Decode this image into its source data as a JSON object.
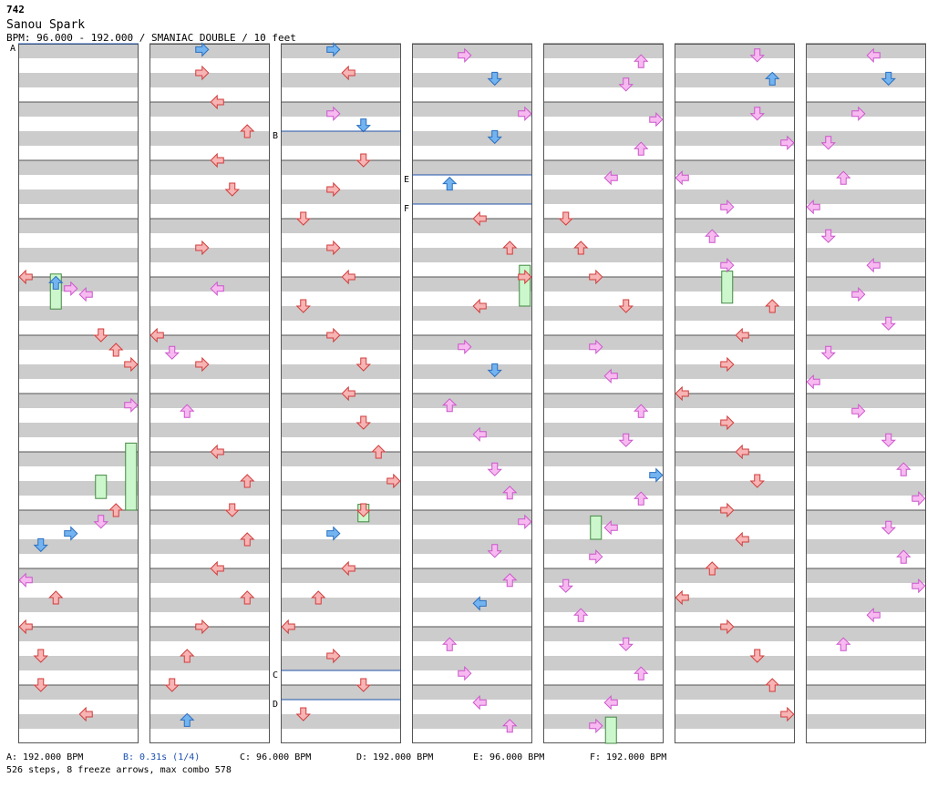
{
  "header": {
    "id": "742",
    "title": "Sanou Spark",
    "info": "BPM: 96.000 - 192.000 / SMANIAC DOUBLE / 10 feet"
  },
  "colors": {
    "stripe": "#cccccc",
    "frame": "#555555",
    "red_fill": "#f7b4b4",
    "red_stroke": "#d23c3c",
    "blue_fill": "#73b4f0",
    "blue_stroke": "#2a6fc0",
    "pink_fill": "#f7baf0",
    "pink_stroke": "#cc55cc",
    "freeze_fill": "#ccf7cc",
    "freeze_stroke": "#448844",
    "marker_line": "#2255aa",
    "stop_text": "#1a4fb0"
  },
  "markers": [
    {
      "label": "A",
      "column": 0,
      "measure": 0
    },
    {
      "label": "B",
      "column": 2,
      "measure": 1.5
    },
    {
      "label": "E",
      "column": 3,
      "measure": 2.25
    },
    {
      "label": "F",
      "column": 3,
      "measure": 2.75
    },
    {
      "label": "C",
      "column": 2,
      "measure": 10.75
    },
    {
      "label": "D",
      "column": 2,
      "measure": 11.25
    }
  ],
  "legend": [
    {
      "text": "A: 192.000 BPM",
      "type": "bpm"
    },
    {
      "text": "B: 0.31s (1/4)",
      "type": "stop"
    },
    {
      "text": "C: 96.000 BPM",
      "type": "bpm"
    },
    {
      "text": "D: 192.000 BPM",
      "type": "bpm"
    },
    {
      "text": "E: 96.000 BPM",
      "type": "bpm"
    },
    {
      "text": "F: 192.000 BPM",
      "type": "bpm"
    }
  ],
  "stats": "526 steps, 8 freeze arrows, max combo 578",
  "layout_info": {
    "columns": 7,
    "measures_per_column": 12,
    "lanes": 8
  },
  "arrows": [
    {
      "c": 0,
      "m": 4.0,
      "l": 0
    },
    {
      "c": 0,
      "m": 4.1,
      "l": 2
    },
    {
      "c": 0,
      "m": 4.2,
      "l": 3
    },
    {
      "c": 0,
      "m": 4.3,
      "l": 4
    },
    {
      "c": 0,
      "m": 5.0,
      "l": 5
    },
    {
      "c": 0,
      "m": 5.25,
      "l": 6
    },
    {
      "c": 0,
      "m": 5.5,
      "l": 7
    },
    {
      "c": 0,
      "m": 6.2,
      "l": 7
    },
    {
      "c": 0,
      "m": 8.0,
      "l": 6
    },
    {
      "c": 0,
      "m": 8.2,
      "l": 5
    },
    {
      "c": 0,
      "m": 8.4,
      "l": 3
    },
    {
      "c": 0,
      "m": 8.6,
      "l": 1
    },
    {
      "c": 0,
      "m": 9.2,
      "l": 0
    },
    {
      "c": 0,
      "m": 9.5,
      "l": 2
    },
    {
      "c": 0,
      "m": 10.0,
      "l": 0
    },
    {
      "c": 0,
      "m": 10.5,
      "l": 1
    },
    {
      "c": 0,
      "m": 11.0,
      "l": 1
    },
    {
      "c": 0,
      "m": 11.5,
      "l": 4
    },
    {
      "c": 1,
      "m": 0.1,
      "l": 3
    },
    {
      "c": 1,
      "m": 0.5,
      "l": 3
    },
    {
      "c": 1,
      "m": 1.0,
      "l": 4
    },
    {
      "c": 1,
      "m": 1.5,
      "l": 6
    },
    {
      "c": 1,
      "m": 2.0,
      "l": 4
    },
    {
      "c": 1,
      "m": 2.5,
      "l": 5
    },
    {
      "c": 1,
      "m": 3.5,
      "l": 3
    },
    {
      "c": 1,
      "m": 4.2,
      "l": 4
    },
    {
      "c": 1,
      "m": 5.0,
      "l": 0
    },
    {
      "c": 1,
      "m": 5.3,
      "l": 1
    },
    {
      "c": 1,
      "m": 5.5,
      "l": 3
    },
    {
      "c": 1,
      "m": 6.3,
      "l": 2
    },
    {
      "c": 1,
      "m": 7.0,
      "l": 4
    },
    {
      "c": 1,
      "m": 7.5,
      "l": 6
    },
    {
      "c": 1,
      "m": 8.0,
      "l": 5
    },
    {
      "c": 1,
      "m": 8.5,
      "l": 6
    },
    {
      "c": 1,
      "m": 9.0,
      "l": 4
    },
    {
      "c": 1,
      "m": 9.5,
      "l": 6
    },
    {
      "c": 1,
      "m": 10.0,
      "l": 3
    },
    {
      "c": 1,
      "m": 10.5,
      "l": 2
    },
    {
      "c": 1,
      "m": 11.0,
      "l": 1
    },
    {
      "c": 1,
      "m": 11.6,
      "l": 2
    },
    {
      "c": 2,
      "m": 0.1,
      "l": 3
    },
    {
      "c": 2,
      "m": 0.5,
      "l": 4
    },
    {
      "c": 2,
      "m": 1.2,
      "l": 3
    },
    {
      "c": 2,
      "m": 1.4,
      "l": 5
    },
    {
      "c": 2,
      "m": 2.0,
      "l": 5
    },
    {
      "c": 2,
      "m": 2.5,
      "l": 3
    },
    {
      "c": 2,
      "m": 3.0,
      "l": 1
    },
    {
      "c": 2,
      "m": 3.5,
      "l": 3
    },
    {
      "c": 2,
      "m": 4.0,
      "l": 4
    },
    {
      "c": 2,
      "m": 4.5,
      "l": 1
    },
    {
      "c": 2,
      "m": 5.0,
      "l": 3
    },
    {
      "c": 2,
      "m": 5.5,
      "l": 5
    },
    {
      "c": 2,
      "m": 6.0,
      "l": 4
    },
    {
      "c": 2,
      "m": 6.5,
      "l": 5
    },
    {
      "c": 2,
      "m": 7.0,
      "l": 6
    },
    {
      "c": 2,
      "m": 7.5,
      "l": 7
    },
    {
      "c": 2,
      "m": 8.0,
      "l": 5
    },
    {
      "c": 2,
      "m": 8.4,
      "l": 3
    },
    {
      "c": 2,
      "m": 9.0,
      "l": 4
    },
    {
      "c": 2,
      "m": 9.5,
      "l": 2
    },
    {
      "c": 2,
      "m": 10.0,
      "l": 0
    },
    {
      "c": 2,
      "m": 10.5,
      "l": 3
    },
    {
      "c": 2,
      "m": 11.0,
      "l": 5
    },
    {
      "c": 2,
      "m": 11.5,
      "l": 1
    },
    {
      "c": 3,
      "m": 0.2,
      "l": 3
    },
    {
      "c": 3,
      "m": 0.6,
      "l": 5
    },
    {
      "c": 3,
      "m": 1.2,
      "l": 7
    },
    {
      "c": 3,
      "m": 1.6,
      "l": 5
    },
    {
      "c": 3,
      "m": 2.4,
      "l": 2
    },
    {
      "c": 3,
      "m": 3.0,
      "l": 4
    },
    {
      "c": 3,
      "m": 3.5,
      "l": 6
    },
    {
      "c": 3,
      "m": 4.0,
      "l": 7
    },
    {
      "c": 3,
      "m": 4.5,
      "l": 4
    },
    {
      "c": 3,
      "m": 5.2,
      "l": 3
    },
    {
      "c": 3,
      "m": 5.6,
      "l": 5
    },
    {
      "c": 3,
      "m": 6.2,
      "l": 2
    },
    {
      "c": 3,
      "m": 6.7,
      "l": 4
    },
    {
      "c": 3,
      "m": 7.3,
      "l": 5
    },
    {
      "c": 3,
      "m": 7.7,
      "l": 6
    },
    {
      "c": 3,
      "m": 8.2,
      "l": 7
    },
    {
      "c": 3,
      "m": 8.7,
      "l": 5
    },
    {
      "c": 3,
      "m": 9.2,
      "l": 6
    },
    {
      "c": 3,
      "m": 9.6,
      "l": 4
    },
    {
      "c": 3,
      "m": 10.3,
      "l": 2
    },
    {
      "c": 3,
      "m": 10.8,
      "l": 3
    },
    {
      "c": 3,
      "m": 11.3,
      "l": 4
    },
    {
      "c": 3,
      "m": 11.7,
      "l": 6
    },
    {
      "c": 4,
      "m": 0.3,
      "l": 6
    },
    {
      "c": 4,
      "m": 0.7,
      "l": 5
    },
    {
      "c": 4,
      "m": 1.3,
      "l": 7
    },
    {
      "c": 4,
      "m": 1.8,
      "l": 6
    },
    {
      "c": 4,
      "m": 2.3,
      "l": 4
    },
    {
      "c": 4,
      "m": 3.0,
      "l": 1
    },
    {
      "c": 4,
      "m": 3.5,
      "l": 2
    },
    {
      "c": 4,
      "m": 4.0,
      "l": 3
    },
    {
      "c": 4,
      "m": 4.5,
      "l": 5
    },
    {
      "c": 4,
      "m": 5.2,
      "l": 3
    },
    {
      "c": 4,
      "m": 5.7,
      "l": 4
    },
    {
      "c": 4,
      "m": 6.3,
      "l": 6
    },
    {
      "c": 4,
      "m": 6.8,
      "l": 5
    },
    {
      "c": 4,
      "m": 7.4,
      "l": 7
    },
    {
      "c": 4,
      "m": 7.8,
      "l": 6
    },
    {
      "c": 4,
      "m": 8.3,
      "l": 4
    },
    {
      "c": 4,
      "m": 8.8,
      "l": 3
    },
    {
      "c": 4,
      "m": 9.3,
      "l": 1
    },
    {
      "c": 4,
      "m": 9.8,
      "l": 2
    },
    {
      "c": 4,
      "m": 10.3,
      "l": 5
    },
    {
      "c": 4,
      "m": 10.8,
      "l": 6
    },
    {
      "c": 4,
      "m": 11.3,
      "l": 4
    },
    {
      "c": 4,
      "m": 11.7,
      "l": 3
    },
    {
      "c": 5,
      "m": 0.2,
      "l": 5
    },
    {
      "c": 5,
      "m": 0.6,
      "l": 6
    },
    {
      "c": 5,
      "m": 1.2,
      "l": 5
    },
    {
      "c": 5,
      "m": 1.7,
      "l": 7
    },
    {
      "c": 5,
      "m": 2.3,
      "l": 0
    },
    {
      "c": 5,
      "m": 2.8,
      "l": 3
    },
    {
      "c": 5,
      "m": 3.3,
      "l": 2
    },
    {
      "c": 5,
      "m": 3.8,
      "l": 3
    },
    {
      "c": 5,
      "m": 4.5,
      "l": 6
    },
    {
      "c": 5,
      "m": 5.0,
      "l": 4
    },
    {
      "c": 5,
      "m": 5.5,
      "l": 3
    },
    {
      "c": 5,
      "m": 6.0,
      "l": 0
    },
    {
      "c": 5,
      "m": 6.5,
      "l": 3
    },
    {
      "c": 5,
      "m": 7.0,
      "l": 4
    },
    {
      "c": 5,
      "m": 7.5,
      "l": 5
    },
    {
      "c": 5,
      "m": 8.0,
      "l": 3
    },
    {
      "c": 5,
      "m": 8.5,
      "l": 4
    },
    {
      "c": 5,
      "m": 9.0,
      "l": 2
    },
    {
      "c": 5,
      "m": 9.5,
      "l": 0
    },
    {
      "c": 5,
      "m": 10.0,
      "l": 3
    },
    {
      "c": 5,
      "m": 10.5,
      "l": 5
    },
    {
      "c": 5,
      "m": 11.0,
      "l": 6
    },
    {
      "c": 5,
      "m": 11.5,
      "l": 7
    },
    {
      "c": 6,
      "m": 0.2,
      "l": 4
    },
    {
      "c": 6,
      "m": 0.6,
      "l": 5
    },
    {
      "c": 6,
      "m": 1.2,
      "l": 3
    },
    {
      "c": 6,
      "m": 1.7,
      "l": 1
    },
    {
      "c": 6,
      "m": 2.3,
      "l": 2
    },
    {
      "c": 6,
      "m": 2.8,
      "l": 0
    },
    {
      "c": 6,
      "m": 3.3,
      "l": 1
    },
    {
      "c": 6,
      "m": 3.8,
      "l": 4
    },
    {
      "c": 6,
      "m": 4.3,
      "l": 3
    },
    {
      "c": 6,
      "m": 4.8,
      "l": 5
    },
    {
      "c": 6,
      "m": 5.3,
      "l": 1
    },
    {
      "c": 6,
      "m": 5.8,
      "l": 0
    },
    {
      "c": 6,
      "m": 6.3,
      "l": 3
    },
    {
      "c": 6,
      "m": 6.8,
      "l": 5
    },
    {
      "c": 6,
      "m": 7.3,
      "l": 6
    },
    {
      "c": 6,
      "m": 7.8,
      "l": 7
    },
    {
      "c": 6,
      "m": 8.3,
      "l": 5
    },
    {
      "c": 6,
      "m": 8.8,
      "l": 6
    },
    {
      "c": 6,
      "m": 9.3,
      "l": 7
    },
    {
      "c": 6,
      "m": 9.8,
      "l": 4
    },
    {
      "c": 6,
      "m": 10.3,
      "l": 2
    }
  ],
  "freezes": [
    {
      "c": 0,
      "m": 3.95,
      "l": 2,
      "len": 0.6
    },
    {
      "c": 0,
      "m": 6.85,
      "l": 7,
      "len": 1.15
    },
    {
      "c": 0,
      "m": 7.4,
      "l": 5,
      "len": 0.4
    },
    {
      "c": 2,
      "m": 7.9,
      "l": 5,
      "len": 0.3
    },
    {
      "c": 3,
      "m": 3.8,
      "l": 7,
      "len": 0.7
    },
    {
      "c": 4,
      "m": 8.1,
      "l": 3,
      "len": 0.4
    },
    {
      "c": 4,
      "m": 11.55,
      "l": 4,
      "len": 0.45
    },
    {
      "c": 5,
      "m": 3.9,
      "l": 3,
      "len": 0.55
    }
  ]
}
